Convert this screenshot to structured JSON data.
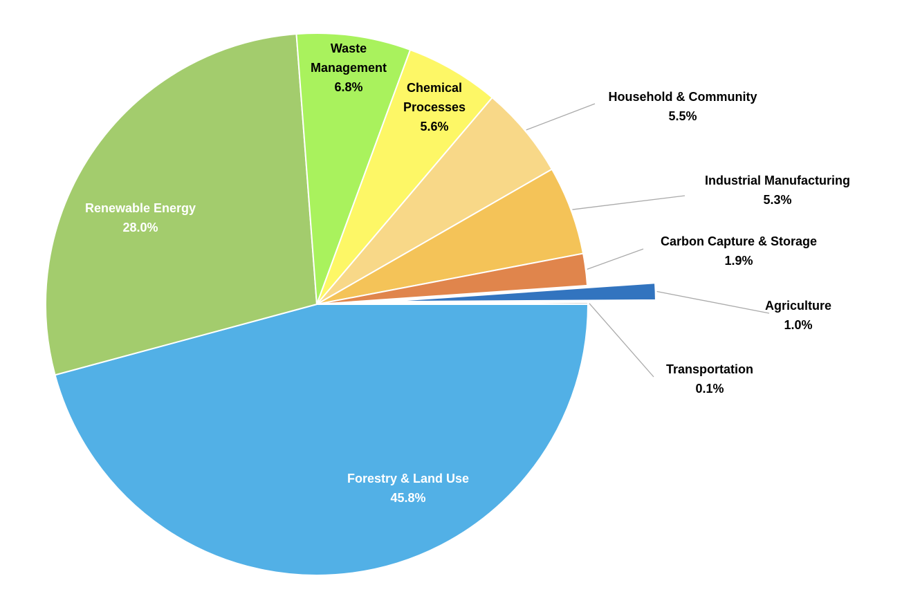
{
  "chart_data": {
    "type": "pie",
    "slices": [
      {
        "label": "Forestry & Land Use",
        "value": 45.8,
        "value_label": "45.8%",
        "color": "#52b0e6",
        "label_placement": "inside",
        "label_color": "#ffffff"
      },
      {
        "label": "Renewable Energy",
        "value": 28.0,
        "value_label": "28.0%",
        "color": "#a3cc6d",
        "label_placement": "inside",
        "label_color": "#ffffff"
      },
      {
        "label": "Waste Management",
        "value": 6.8,
        "value_label": "6.8%",
        "color": "#a9f25d",
        "label_placement": "inside",
        "label_color": "#000000"
      },
      {
        "label": "Chemical Processes",
        "value": 5.6,
        "value_label": "5.6%",
        "color": "#fdf766",
        "label_placement": "inside",
        "label_color": "#000000"
      },
      {
        "label": "Household & Community",
        "value": 5.5,
        "value_label": "5.5%",
        "color": "#f8d888",
        "label_placement": "outside",
        "label_color": "#000000"
      },
      {
        "label": "Industrial Manufacturing",
        "value": 5.3,
        "value_label": "5.3%",
        "color": "#f4c358",
        "label_placement": "outside",
        "label_color": "#000000"
      },
      {
        "label": "Carbon Capture & Storage",
        "value": 1.9,
        "value_label": "1.9%",
        "color": "#e0854c",
        "label_placement": "outside",
        "label_color": "#000000"
      },
      {
        "label": "Agriculture",
        "value": 1.0,
        "value_label": "1.0%",
        "color": "#3274bf",
        "label_placement": "outside",
        "label_color": "#000000",
        "exploded": true
      },
      {
        "label": "Transportation",
        "value": 0.1,
        "value_label": "0.1%",
        "color": "#999999",
        "label_placement": "outside",
        "label_color": "#000000"
      }
    ],
    "start_angle": "east",
    "direction": "counter-clockwise",
    "legend": "none"
  }
}
